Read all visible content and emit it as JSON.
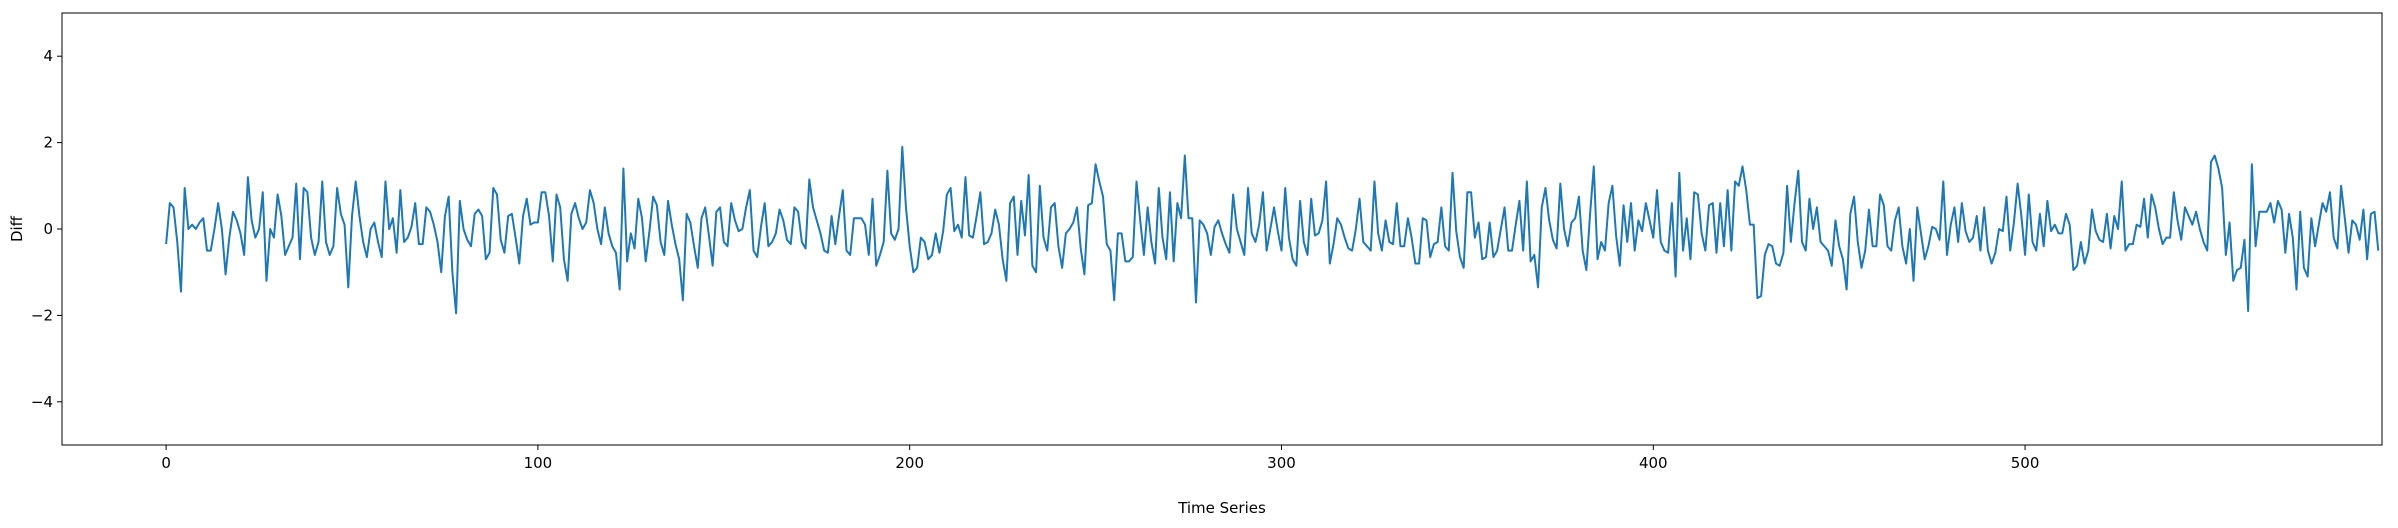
{
  "chart_data": {
    "type": "line",
    "title": "",
    "xlabel": "Time Series",
    "ylabel": "Diff",
    "xlim": [
      -28,
      596
    ],
    "ylim": [
      -5,
      5
    ],
    "xticks": [
      0,
      100,
      200,
      300,
      400,
      500
    ],
    "yticks": [
      -4,
      -2,
      0,
      2,
      4
    ],
    "grid": false,
    "legend": "none",
    "series": [
      {
        "color": "#1f77b4",
        "x_start": 0,
        "x_step": 1,
        "values": [
          -0.35,
          0.6,
          0.5,
          -0.3,
          -1.45,
          0.95,
          0.0,
          0.1,
          0.0,
          0.15,
          0.25,
          -0.5,
          -0.5,
          0.0,
          0.6,
          0.0,
          -1.05,
          -0.2,
          0.4,
          0.2,
          -0.1,
          -0.6,
          1.2,
          0.2,
          -0.2,
          0.0,
          0.85,
          -1.2,
          0.0,
          -0.2,
          0.8,
          0.3,
          -0.6,
          -0.4,
          -0.2,
          1.05,
          -0.7,
          0.95,
          0.85,
          -0.2,
          -0.6,
          -0.3,
          1.1,
          -0.3,
          -0.6,
          -0.4,
          0.95,
          0.35,
          0.1,
          -1.35,
          0.3,
          1.1,
          0.3,
          -0.3,
          -0.65,
          0.0,
          0.15,
          -0.3,
          -0.65,
          1.1,
          0.0,
          0.25,
          -0.55,
          0.9,
          -0.3,
          -0.2,
          0.05,
          0.6,
          -0.35,
          -0.35,
          0.5,
          0.4,
          0.1,
          -0.3,
          -1.0,
          0.3,
          0.75,
          -1.0,
          -1.95,
          0.65,
          0.0,
          -0.25,
          -0.4,
          0.35,
          0.45,
          0.3,
          -0.7,
          -0.55,
          0.95,
          0.8,
          -0.25,
          -0.55,
          0.3,
          0.35,
          -0.2,
          -0.8,
          0.3,
          0.7,
          0.1,
          0.15,
          0.15,
          0.85,
          0.85,
          0.3,
          -0.75,
          0.8,
          0.5,
          -0.7,
          -1.2,
          0.35,
          0.6,
          0.25,
          0.0,
          0.15,
          0.9,
          0.6,
          0.0,
          -0.35,
          0.5,
          -0.1,
          -0.4,
          -0.55,
          -1.4,
          1.4,
          -0.75,
          -0.1,
          -0.45,
          0.7,
          0.25,
          -0.75,
          -0.05,
          0.75,
          0.55,
          -0.3,
          -0.6,
          0.65,
          0.1,
          -0.35,
          -0.7,
          -1.65,
          0.35,
          0.15,
          -0.4,
          -0.9,
          0.25,
          0.5,
          -0.15,
          -0.85,
          0.4,
          0.5,
          -0.3,
          -0.4,
          0.6,
          0.2,
          -0.05,
          0.0,
          0.5,
          0.9,
          -0.5,
          -0.65,
          0.05,
          0.6,
          -0.4,
          -0.3,
          -0.1,
          0.45,
          0.2,
          -0.25,
          -0.35,
          0.5,
          0.4,
          -0.3,
          -0.45,
          1.15,
          0.5,
          0.2,
          -0.1,
          -0.5,
          -0.55,
          0.3,
          -0.35,
          0.3,
          0.9,
          -0.5,
          -0.6,
          0.25,
          0.25,
          0.25,
          0.1,
          -0.6,
          0.7,
          -0.85,
          -0.6,
          -0.3,
          1.35,
          -0.1,
          -0.25,
          0.0,
          1.9,
          0.5,
          -0.4,
          -1.0,
          -0.9,
          -0.2,
          -0.3,
          -0.7,
          -0.6,
          -0.1,
          -0.55,
          -0.05,
          0.8,
          0.95,
          -0.05,
          0.1,
          -0.2,
          1.2,
          -0.15,
          -0.2,
          0.3,
          0.85,
          -0.35,
          -0.3,
          -0.1,
          0.45,
          0.1,
          -0.7,
          -1.2,
          0.6,
          0.75,
          -0.6,
          0.65,
          -0.15,
          1.25,
          -0.85,
          -1.0,
          1.0,
          -0.2,
          -0.5,
          0.5,
          0.6,
          -0.4,
          -0.9,
          -0.1,
          0.0,
          0.15,
          0.5,
          -0.45,
          -1.05,
          0.55,
          0.6,
          1.5,
          1.1,
          0.75,
          -0.35,
          -0.5,
          -1.65,
          -0.1,
          -0.1,
          -0.75,
          -0.75,
          -0.65,
          1.1,
          0.2,
          -0.6,
          0.5,
          -0.3,
          -0.8,
          0.95,
          -0.2,
          -0.7,
          0.85,
          -0.75,
          0.6,
          0.25,
          1.7,
          0.25,
          0.25,
          -1.7,
          0.2,
          0.1,
          -0.1,
          -0.6,
          0.05,
          0.2,
          -0.1,
          -0.35,
          -0.55,
          0.8,
          0.0,
          -0.3,
          -0.6,
          0.95,
          -0.1,
          -0.3,
          0.1,
          0.85,
          -0.5,
          0.0,
          0.5,
          -0.05,
          -0.5,
          0.95,
          -0.2,
          -0.7,
          -0.85,
          0.65,
          -0.3,
          -0.6,
          0.7,
          -0.15,
          -0.1,
          0.2,
          1.1,
          -0.8,
          -0.35,
          0.25,
          0.1,
          -0.2,
          -0.45,
          -0.5,
          0.0,
          0.7,
          -0.3,
          -0.4,
          -0.5,
          1.1,
          -0.1,
          -0.5,
          0.2,
          -0.3,
          -0.35,
          0.6,
          -0.4,
          -0.4,
          0.25,
          -0.2,
          -0.8,
          -0.8,
          0.25,
          0.2,
          -0.65,
          -0.35,
          -0.3,
          0.5,
          -0.4,
          -0.5,
          1.3,
          -0.05,
          -0.65,
          -0.9,
          0.85,
          0.85,
          -0.2,
          0.15,
          -0.7,
          -0.65,
          0.15,
          -0.65,
          -0.5,
          0.0,
          0.5,
          -0.5,
          -0.5,
          0.1,
          0.65,
          -0.5,
          1.1,
          -0.75,
          -0.6,
          -1.35,
          0.5,
          0.95,
          0.2,
          -0.25,
          -0.45,
          1.05,
          0.0,
          -0.4,
          0.15,
          0.25,
          0.75,
          -0.5,
          -0.95,
          0.35,
          1.45,
          -0.7,
          -0.3,
          -0.5,
          0.6,
          1.0,
          -0.15,
          -0.85,
          0.55,
          -0.3,
          0.6,
          -0.5,
          0.2,
          -0.05,
          0.6,
          0.2,
          -0.2,
          0.9,
          -0.3,
          -0.5,
          -0.55,
          0.6,
          -1.1,
          1.3,
          -0.5,
          0.25,
          -0.7,
          0.85,
          0.8,
          -0.1,
          -0.5,
          0.55,
          0.6,
          -0.55,
          0.6,
          -0.4,
          0.9,
          -0.5,
          1.1,
          1.0,
          1.45,
          0.9,
          0.1,
          0.1,
          -1.6,
          -1.55,
          -0.6,
          -0.35,
          -0.4,
          -0.8,
          -0.85,
          -0.55,
          1.0,
          -0.3,
          0.6,
          1.35,
          -0.3,
          -0.5,
          0.7,
          0.0,
          0.5,
          -0.3,
          -0.4,
          -0.5,
          -0.85,
          0.2,
          -0.4,
          -0.7,
          -1.4,
          0.35,
          0.75,
          -0.3,
          -0.9,
          -0.5,
          0.45,
          -0.4,
          -0.4,
          0.8,
          0.55,
          -0.4,
          -0.5,
          0.2,
          0.5,
          -0.4,
          -0.8,
          0.0,
          -1.2,
          0.5,
          -0.1,
          -0.7,
          -0.4,
          0.05,
          0.0,
          -0.25,
          1.1,
          -0.6,
          0.1,
          0.5,
          -0.3,
          0.6,
          -0.05,
          -0.3,
          -0.2,
          0.3,
          -0.5,
          0.5,
          -0.5,
          -0.8,
          -0.55,
          0.0,
          -0.05,
          0.75,
          -0.5,
          0.15,
          1.05,
          0.3,
          -0.6,
          0.8,
          -0.3,
          -0.5,
          0.35,
          -0.4,
          0.65,
          -0.05,
          0.1,
          -0.1,
          -0.1,
          0.35,
          0.1,
          -0.95,
          -0.85,
          -0.3,
          -0.8,
          -0.5,
          0.45,
          -0.05,
          -0.25,
          -0.3,
          0.35,
          -0.45,
          0.3,
          0.0,
          1.1,
          -0.5,
          -0.35,
          -0.35,
          0.1,
          0.05,
          0.7,
          -0.2,
          0.8,
          0.5,
          0.0,
          -0.35,
          -0.2,
          -0.2,
          0.85,
          0.2,
          -0.25,
          0.5,
          0.3,
          0.1,
          0.4,
          0.0,
          -0.3,
          -0.5,
          1.55,
          1.7,
          1.4,
          0.95,
          -0.6,
          0.15,
          -1.2,
          -0.95,
          -0.9,
          -0.25,
          -1.9,
          1.5,
          -0.4,
          0.4,
          0.4,
          0.4,
          0.6,
          0.15,
          0.65,
          0.45,
          -0.55,
          0.35,
          -0.2,
          -1.4,
          0.4,
          -0.9,
          -1.1,
          0.25,
          -0.4,
          0.1,
          0.6,
          0.4,
          0.85,
          -0.2,
          -0.45,
          1.0,
          0.25,
          -0.55,
          0.2,
          0.1,
          -0.25,
          0.45,
          -0.7,
          0.35,
          0.4,
          -0.5
        ]
      }
    ]
  }
}
